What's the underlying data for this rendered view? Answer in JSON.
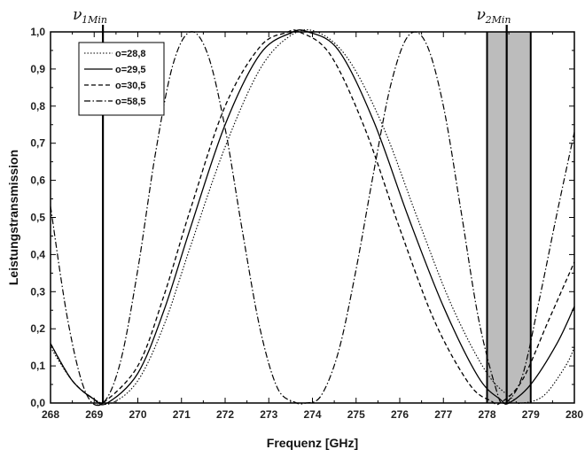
{
  "chart_data": {
    "type": "line",
    "xlabel": "Frequenz [GHz]",
    "ylabel": "Leistungstransmission",
    "xlim": [
      268,
      280
    ],
    "ylim": [
      0.0,
      1.0
    ],
    "x_ticks": [
      "268",
      "269",
      "270",
      "271",
      "272",
      "273",
      "274",
      "275",
      "276",
      "277",
      "278",
      "279",
      "280"
    ],
    "y_ticks": [
      "0,0",
      "0,1",
      "0,2",
      "0,3",
      "0,4",
      "0,5",
      "0,6",
      "0,7",
      "0,8",
      "0,9",
      "1,0"
    ],
    "legend_position": "top-left",
    "series": [
      {
        "name": "o=28,8",
        "style": "dotted",
        "x": [
          268.0,
          268.5,
          269.0,
          269.4,
          270.0,
          270.6,
          271.2,
          272.0,
          272.8,
          273.5,
          274.1,
          274.8,
          275.6,
          276.4,
          277.2,
          278.0,
          278.6,
          278.8,
          279.3,
          279.8,
          280.0
        ],
        "y": [
          0.15,
          0.06,
          0.01,
          0.0,
          0.06,
          0.21,
          0.42,
          0.69,
          0.9,
          0.99,
          1.0,
          0.93,
          0.75,
          0.5,
          0.26,
          0.08,
          0.01,
          0.0,
          0.02,
          0.1,
          0.15
        ]
      },
      {
        "name": "o=29,5",
        "style": "solid",
        "x": [
          268.0,
          268.5,
          269.0,
          269.3,
          270.0,
          270.6,
          271.2,
          272.0,
          272.8,
          273.5,
          273.9,
          274.6,
          275.4,
          276.2,
          277.0,
          277.8,
          278.3,
          278.5,
          279.0,
          279.6,
          280.0
        ],
        "y": [
          0.16,
          0.06,
          0.01,
          0.0,
          0.08,
          0.25,
          0.47,
          0.75,
          0.94,
          0.997,
          1.0,
          0.95,
          0.76,
          0.5,
          0.26,
          0.07,
          0.01,
          0.0,
          0.05,
          0.16,
          0.26
        ]
      },
      {
        "name": "o=30,5",
        "style": "dashed",
        "x": [
          268.0,
          268.5,
          269.0,
          269.2,
          270.0,
          270.6,
          271.2,
          272.0,
          272.8,
          273.4,
          273.7,
          274.4,
          275.2,
          276.0,
          276.8,
          277.6,
          278.1,
          278.3,
          278.8,
          279.4,
          280.0
        ],
        "y": [
          0.16,
          0.06,
          0.01,
          0.0,
          0.1,
          0.29,
          0.52,
          0.8,
          0.96,
          0.998,
          1.0,
          0.94,
          0.74,
          0.47,
          0.22,
          0.05,
          0.005,
          0.0,
          0.06,
          0.22,
          0.38
        ]
      },
      {
        "name": "o=58,5",
        "style": "dashdot",
        "x": [
          268.0,
          268.4,
          268.8,
          269.2,
          269.6,
          270.0,
          270.4,
          270.8,
          271.2,
          271.6,
          272.0,
          272.4,
          272.8,
          273.2,
          273.6,
          273.85,
          274.2,
          274.6,
          275.0,
          275.4,
          275.8,
          276.2,
          276.6,
          277.0,
          277.4,
          277.8,
          278.2,
          278.4,
          278.8,
          279.2,
          279.6,
          280.0
        ],
        "y": [
          0.53,
          0.22,
          0.03,
          0.0,
          0.11,
          0.36,
          0.67,
          0.91,
          1.0,
          0.94,
          0.74,
          0.46,
          0.2,
          0.04,
          0.002,
          0.0,
          0.02,
          0.14,
          0.36,
          0.62,
          0.86,
          0.99,
          0.97,
          0.8,
          0.52,
          0.23,
          0.04,
          0.0,
          0.07,
          0.28,
          0.51,
          0.73
        ]
      }
    ],
    "markers": [
      {
        "label": "ν",
        "sub": "1Min",
        "x": 269.2
      },
      {
        "label": "ν",
        "sub": "2Min",
        "x": 278.45
      }
    ],
    "band": {
      "x0": 278.0,
      "x1": 279.0,
      "color": "#b5b5b5"
    }
  }
}
